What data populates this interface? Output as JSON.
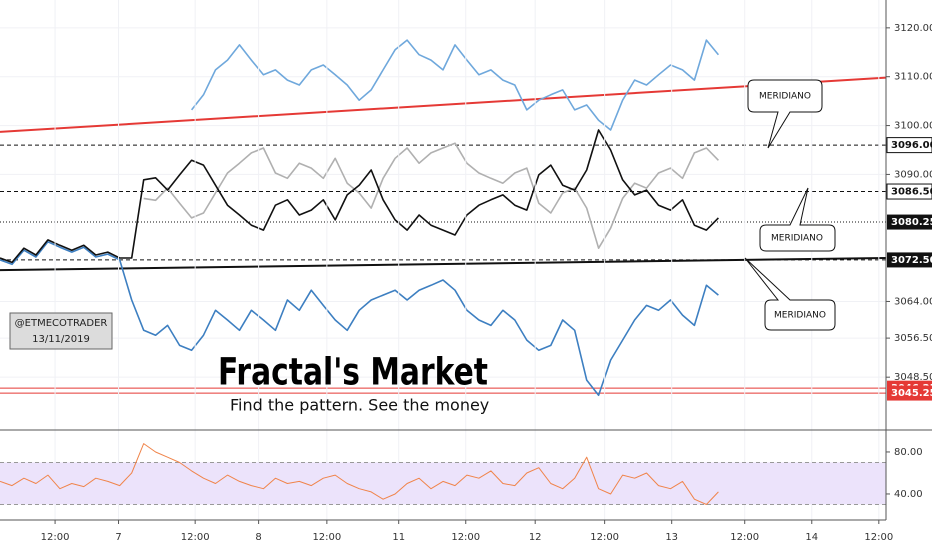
{
  "chart_data": [
    {
      "type": "line",
      "title": "Fractal's Market",
      "subtitle": "Find the pattern. See the money",
      "watermark": [
        "@ETMECOTRADER",
        "13/11/2019"
      ],
      "annotations": [
        "MERIDIANO",
        "MERIDIANO",
        "MERIDIANO"
      ],
      "xlim": [
        0,
        74
      ],
      "ylim": [
        3038.1,
        3125.7
      ],
      "yticks": [
        {
          "value": 3120,
          "label": "3120.00"
        },
        {
          "value": 3110,
          "label": "3110.00"
        },
        {
          "value": 3100,
          "label": "3100.00"
        },
        {
          "value": 3090,
          "label": "3090.00"
        },
        {
          "value": 3064,
          "label": "3064.00"
        },
        {
          "value": 3056.5,
          "label": "3056.50"
        },
        {
          "value": 3048.5,
          "label": "3048.50"
        }
      ],
      "grid": true,
      "x": [
        0,
        1,
        2,
        3,
        4,
        5,
        6,
        7,
        8,
        9,
        10,
        11,
        12,
        13,
        14,
        15,
        16,
        17,
        18,
        19,
        20,
        21,
        22,
        23,
        24,
        25,
        26,
        27,
        28,
        29,
        30,
        31,
        32,
        33,
        34,
        35,
        36,
        37,
        38,
        39,
        40,
        41,
        42,
        43,
        44,
        45,
        46,
        47,
        48,
        49,
        50,
        51,
        52,
        53,
        54,
        55,
        56,
        57,
        58,
        59,
        60
      ],
      "series": [
        {
          "color": "#6fa8dc",
          "values": [
            null,
            null,
            null,
            null,
            null,
            null,
            null,
            null,
            null,
            null,
            null,
            null,
            null,
            null,
            null,
            null,
            3103.2,
            3106.3,
            3111.4,
            3113.4,
            3116.5,
            3113.4,
            3110.4,
            3111.4,
            3109.3,
            3108.3,
            3111.4,
            3112.4,
            3110.4,
            3108.3,
            3105.2,
            3107.3,
            3111.4,
            3115.5,
            3117.5,
            3114.5,
            3113.4,
            3111.4,
            3116.5,
            3113.4,
            3110.4,
            3111.4,
            3109.3,
            3108.3,
            3103.2,
            3105.2,
            3106.3,
            3107.3,
            3103.2,
            3104.2,
            3101.1,
            3099.1,
            3105.2,
            3109.3,
            3108.3,
            3110.4,
            3112.4,
            3111.4,
            3109.3,
            3117.5,
            3114.5
          ]
        },
        {
          "color": "#b0b0b0",
          "values": [
            null,
            null,
            null,
            null,
            null,
            null,
            null,
            null,
            null,
            null,
            null,
            null,
            3085.1,
            3084.7,
            3087.2,
            3084.1,
            3081.1,
            3082.1,
            3086.2,
            3090.3,
            3092.3,
            3094.4,
            3095.4,
            3090.3,
            3089.2,
            3092.3,
            3091.3,
            3089.2,
            3093.3,
            3088.2,
            3086.2,
            3083.1,
            3089.2,
            3093.3,
            3095.4,
            3092.3,
            3094.4,
            3095.4,
            3096.4,
            3092.3,
            3090.3,
            3089.2,
            3088.2,
            3090.3,
            3091.3,
            3084.1,
            3082.1,
            3086.2,
            3087.2,
            3083.1,
            3074.9,
            3079.0,
            3085.1,
            3088.2,
            3087.2,
            3090.3,
            3091.3,
            3089.2,
            3094.4,
            3095.4,
            3092.9
          ]
        },
        {
          "color": "#3d7fc1",
          "values": [
            3072.5,
            3071.6,
            3074.5,
            3073.1,
            3076.2,
            3075.1,
            3074.1,
            3075.1,
            3073.1,
            3073.7,
            3072.5,
            3064.3,
            3058.1,
            3057.1,
            3059.1,
            3055.0,
            3054.0,
            3057.1,
            3062.2,
            3060.2,
            3058.1,
            3062.2,
            3060.2,
            3058.1,
            3064.3,
            3062.2,
            3066.3,
            3063.2,
            3060.2,
            3058.1,
            3062.2,
            3064.3,
            3065.3,
            3066.3,
            3064.3,
            3066.3,
            3067.3,
            3068.4,
            3066.3,
            3062.2,
            3060.2,
            3059.1,
            3062.2,
            3060.2,
            3056.1,
            3054.0,
            3055.0,
            3060.2,
            3058.1,
            3047.9,
            3044.8,
            3052.0,
            3056.1,
            3060.2,
            3063.2,
            3062.2,
            3064.3,
            3061.2,
            3059.1,
            3067.3,
            3065.3
          ]
        },
        {
          "color": "#111111",
          "values": [
            3072.9,
            3072.0,
            3074.9,
            3073.5,
            3076.6,
            3075.5,
            3074.5,
            3075.5,
            3073.5,
            3074.1,
            3072.9,
            3072.9,
            3088.9,
            3089.3,
            3086.8,
            3089.9,
            3092.9,
            3091.9,
            3087.8,
            3083.7,
            3081.7,
            3079.6,
            3078.6,
            3083.7,
            3084.8,
            3081.7,
            3082.7,
            3084.8,
            3080.7,
            3085.8,
            3087.8,
            3090.9,
            3084.8,
            3080.7,
            3078.6,
            3081.7,
            3079.6,
            3078.6,
            3077.6,
            3081.7,
            3083.7,
            3084.8,
            3085.8,
            3083.7,
            3082.7,
            3089.9,
            3091.9,
            3087.8,
            3086.8,
            3090.9,
            3099.1,
            3095.0,
            3088.9,
            3085.8,
            3086.8,
            3083.7,
            3082.7,
            3084.8,
            3079.6,
            3078.6,
            3081.1
          ]
        }
      ],
      "trendlines": [
        {
          "color": "#e53935",
          "x": [
            0,
            74
          ],
          "values": [
            3098.7,
            3109.8
          ]
        },
        {
          "color": "#111111",
          "x": [
            0,
            74
          ],
          "values": [
            3070.4,
            3072.9
          ]
        }
      ],
      "levels": [
        {
          "value": 3096,
          "label": "3096.00",
          "line": "dashed",
          "color": "#111111",
          "tag": "#ffffff"
        },
        {
          "value": 3086.5,
          "label": "3086.50",
          "line": "dashed",
          "color": "#111111",
          "tag": "#ffffff"
        },
        {
          "value": 3080.25,
          "label": "3080.25",
          "line": "dotted",
          "color": "#111111",
          "tag": "#111111"
        },
        {
          "value": 3072.5,
          "label": "3072.50",
          "line": "dashed",
          "color": "#111111",
          "tag": "#111111"
        },
        {
          "value": 3046.25,
          "label": "3046.25",
          "line": "solid",
          "color": "#e53935",
          "tag": "#e53935"
        },
        {
          "value": 3045.25,
          "label": "3045.25",
          "line": "solid",
          "color": "#e53935",
          "tag": "#e53935"
        }
      ]
    },
    {
      "type": "line",
      "xlim": [
        0,
        74
      ],
      "ylim": [
        15.2,
        99
      ],
      "yticks": [
        {
          "value": 80,
          "label": "80.00"
        },
        {
          "value": 40,
          "label": "40.00"
        }
      ],
      "xticks": [
        {
          "value": 4.6,
          "label": "12:00"
        },
        {
          "value": 9.9,
          "label": "7"
        },
        {
          "value": 16.3,
          "label": "12:00"
        },
        {
          "value": 21.6,
          "label": "8"
        },
        {
          "value": 27.3,
          "label": "12:00"
        },
        {
          "value": 33.3,
          "label": "11"
        },
        {
          "value": 38.9,
          "label": "12:00"
        },
        {
          "value": 44.7,
          "label": "12"
        },
        {
          "value": 50.5,
          "label": "12:00"
        },
        {
          "value": 56.1,
          "label": "13"
        },
        {
          "value": 62.2,
          "label": "12:00"
        },
        {
          "value": 67.8,
          "label": "14"
        },
        {
          "value": 73.4,
          "label": "12:00"
        }
      ],
      "band": [
        30,
        70
      ],
      "band_color": "#ece3fb",
      "x": [
        0,
        1,
        2,
        3,
        4,
        5,
        6,
        7,
        8,
        9,
        10,
        11,
        12,
        13,
        14,
        15,
        16,
        17,
        18,
        19,
        20,
        21,
        22,
        23,
        24,
        25,
        26,
        27,
        28,
        29,
        30,
        31,
        32,
        33,
        34,
        35,
        36,
        37,
        38,
        39,
        40,
        41,
        42,
        43,
        44,
        45,
        46,
        47,
        48,
        49,
        50,
        51,
        52,
        53,
        54,
        55,
        56,
        57,
        58,
        59,
        60
      ],
      "series": [
        {
          "color": "#f0844a",
          "values": [
            52,
            48,
            55,
            50,
            58,
            45,
            50,
            47,
            55,
            52,
            48,
            60,
            88,
            80,
            75,
            70,
            62,
            55,
            50,
            58,
            52,
            48,
            45,
            55,
            50,
            52,
            48,
            55,
            58,
            50,
            45,
            42,
            35,
            40,
            50,
            55,
            45,
            52,
            48,
            58,
            55,
            62,
            50,
            48,
            60,
            65,
            50,
            45,
            55,
            75,
            45,
            40,
            58,
            55,
            60,
            48,
            45,
            52,
            35,
            30,
            42
          ]
        }
      ]
    }
  ]
}
